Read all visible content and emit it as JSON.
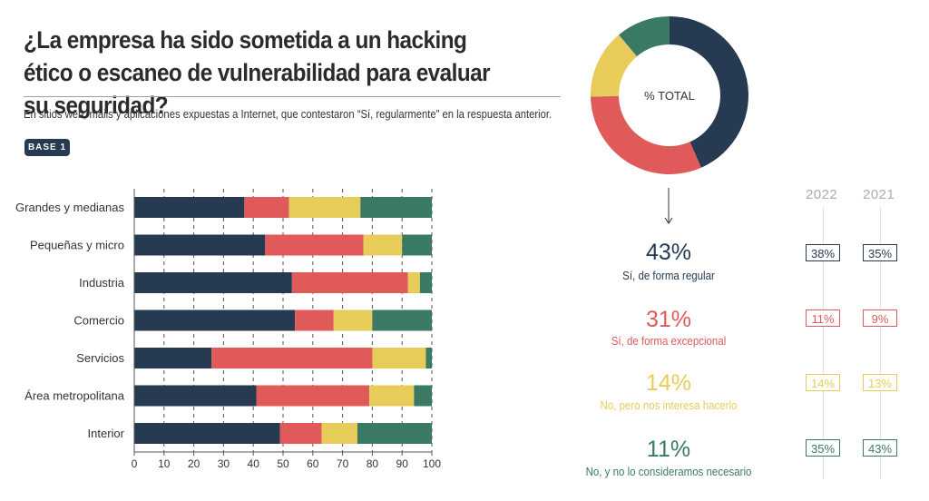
{
  "title": "¿La empresa ha sido sometida a un hacking ético o escaneo de vulnerabilidad para evaluar su seguridad?",
  "subtitle": "En sitios web, mails y aplicaciones expuestas a Internet, que contestaron “Sí, regularmente” en la respuesta anterior.",
  "badge": "BASE 1",
  "colors": {
    "navy": "#263a52",
    "red": "#e05a5a",
    "yellow": "#e8cc5a",
    "green": "#3a7a64"
  },
  "donut_label": "% TOTAL",
  "years": {
    "y1": "2022",
    "y2": "2021"
  },
  "chart_data": [
    {
      "type": "bar",
      "orientation": "horizontal",
      "stacked": true,
      "categories": [
        "Grandes y medianas",
        "Pequeñas y micro",
        "Industria",
        "Comercio",
        "Servicios",
        "Área metropolitana",
        "Interior"
      ],
      "series": [
        {
          "name": "Sí, de forma regular",
          "color": "#263a52",
          "values": [
            37,
            44,
            53,
            54,
            26,
            41,
            49
          ]
        },
        {
          "name": "Sí, de forma excepcional",
          "color": "#e05a5a",
          "values": [
            15,
            33,
            39,
            13,
            54,
            38,
            14
          ]
        },
        {
          "name": "No, pero nos interesa hacerlo",
          "color": "#e8cc5a",
          "values": [
            24,
            13,
            4,
            13,
            18,
            15,
            12
          ]
        },
        {
          "name": "No, y no lo consideramos necesario",
          "color": "#3a7a64",
          "values": [
            24,
            10,
            4,
            20,
            2,
            6,
            25
          ]
        }
      ],
      "xlim": [
        0,
        100
      ],
      "xticks": [
        "0",
        "10",
        "20",
        "30",
        "40",
        "50",
        "60",
        "70",
        "80",
        "90",
        "100"
      ],
      "grid": true
    },
    {
      "type": "pie",
      "donut": true,
      "values": [
        43,
        31,
        14,
        11
      ],
      "colors": [
        "#263a52",
        "#e05a5a",
        "#e8cc5a",
        "#3a7a64"
      ]
    }
  ],
  "summary": [
    {
      "pct": "43%",
      "label": "Sí, de forma regular",
      "color": "#263a52",
      "y2022": "38%",
      "y2021": "35%"
    },
    {
      "pct": "31%",
      "label": "Sí, de forma excepcional",
      "color": "#e05a5a",
      "y2022": "11%",
      "y2021": "9%"
    },
    {
      "pct": "14%",
      "label": "No, pero nos interesa hacerlo",
      "color": "#e8cc5a",
      "y2022": "14%",
      "y2021": "13%"
    },
    {
      "pct": "11%",
      "label": "No, y no lo consideramos necesario",
      "color": "#3a7a64",
      "y2022": "35%",
      "y2021": "43%"
    }
  ]
}
